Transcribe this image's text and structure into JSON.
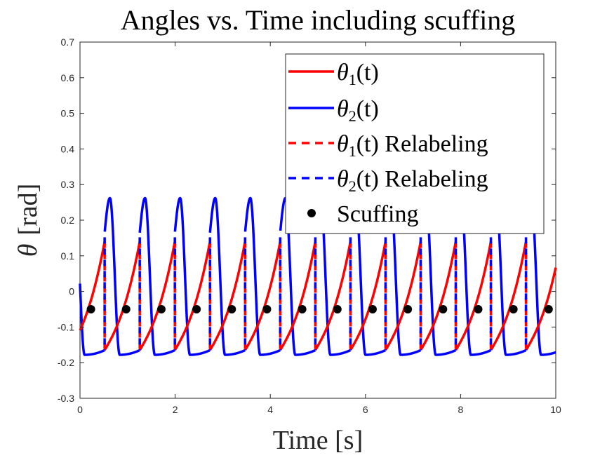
{
  "chart_data": {
    "type": "line",
    "title": "Angles vs. Time including scuffing",
    "xlabel": "Time [s]",
    "ylabel_symbol": "θ",
    "ylabel_unit": "[rad]",
    "xlim": [
      0,
      10
    ],
    "ylim": [
      -0.3,
      0.7
    ],
    "x_ticks": [
      0,
      2,
      4,
      6,
      8,
      10
    ],
    "x_tick_labels": [
      "0",
      "2",
      "4",
      "6",
      "8",
      "10"
    ],
    "y_ticks": [
      -0.3,
      -0.2,
      -0.1,
      0,
      0.1,
      0.2,
      0.3,
      0.4,
      0.5,
      0.6,
      0.7
    ],
    "y_tick_labels": [
      "-0.3",
      "-0.2",
      "-0.1",
      "0",
      "0.1",
      "0.2",
      "0.3",
      "0.4",
      "0.5",
      "0.6",
      "0.7"
    ],
    "grid": false,
    "legend_position": "top-right",
    "step_period": 0.738,
    "scuffing_y": -0.05,
    "scuffing_times": [
      0.23,
      0.97,
      1.71,
      2.45,
      3.19,
      3.93,
      4.67,
      5.41,
      6.15,
      6.89,
      7.63,
      8.37,
      9.11,
      9.85
    ],
    "series": [
      {
        "name": "θ1(t)",
        "label_sym": "θ",
        "label_sub": "1",
        "label_rest": "(t)",
        "color": "#ff0000",
        "style": "solid",
        "y_at_step_start": -0.165,
        "y_at_step_end": 0.14
      },
      {
        "name": "θ2(t)",
        "label_sym": "θ",
        "label_sub": "2",
        "label_rest": "(t)",
        "color": "#0000ff",
        "style": "solid",
        "y_at_step_start": 0.165,
        "y_max": 0.262,
        "y_min": -0.178,
        "y_at_step_end": -0.165
      },
      {
        "name": "θ1(t) Relabeling",
        "label_sym": "θ",
        "label_sub": "1",
        "label_rest": "(t) Relabeling",
        "color": "#ff0000",
        "style": "dashed",
        "y_from": 0.14,
        "y_to": -0.165
      },
      {
        "name": "θ2(t) Relabeling",
        "label_sym": "θ",
        "label_sub": "2",
        "label_rest": "(t) Relabeling",
        "color": "#0000ff",
        "style": "dashed",
        "y_from": -0.165,
        "y_to": 0.165
      },
      {
        "name": "Scuffing",
        "label_sym": "",
        "label_sub": "",
        "label_rest": "Scuffing",
        "color": "#000000",
        "style": "marker"
      }
    ]
  }
}
